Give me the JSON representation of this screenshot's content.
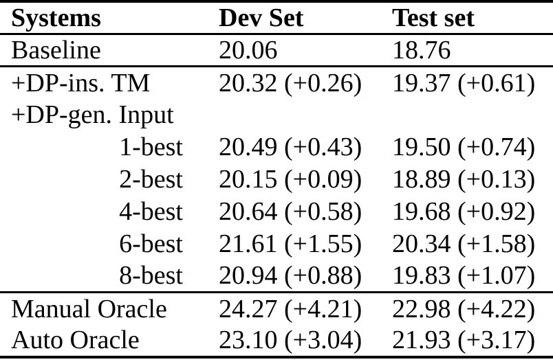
{
  "page": {
    "background_color": "#ffffff",
    "text_color": "#000000",
    "rule_color": "#000000"
  },
  "table": {
    "headers": [
      "Systems",
      "Dev Set",
      "Test set"
    ],
    "rows": [
      {
        "system": "Baseline",
        "dev": "20.06",
        "test": "18.76",
        "indent": false,
        "rule_before": false
      },
      {
        "system": "+DP-ins. TM",
        "dev": "20.32 (+0.26)",
        "test": "19.37 (+0.61)",
        "indent": false,
        "rule_before": true
      },
      {
        "system": "+DP-gen. Input",
        "dev": "",
        "test": "",
        "indent": false,
        "rule_before": false
      },
      {
        "system": "1-best",
        "dev": "20.49 (+0.43)",
        "test": "19.50 (+0.74)",
        "indent": true,
        "rule_before": false
      },
      {
        "system": "2-best",
        "dev": "20.15 (+0.09)",
        "test": "18.89 (+0.13)",
        "indent": true,
        "rule_before": false
      },
      {
        "system": "4-best",
        "dev": "20.64 (+0.58)",
        "test": "19.68 (+0.92)",
        "indent": true,
        "rule_before": false
      },
      {
        "system": "6-best",
        "dev": "21.61 (+1.55)",
        "test": "20.34 (+1.58)",
        "indent": true,
        "rule_before": false
      },
      {
        "system": "8-best",
        "dev": "20.94 (+0.88)",
        "test": "19.83 (+1.07)",
        "indent": true,
        "rule_before": false
      },
      {
        "system": "Manual Oracle",
        "dev": "24.27 (+4.21)",
        "test": "22.98 (+4.22)",
        "indent": false,
        "rule_before": true
      },
      {
        "system": "Auto Oracle",
        "dev": "23.10 (+3.04)",
        "test": "21.93 (+3.17)",
        "indent": false,
        "rule_before": false
      }
    ]
  }
}
